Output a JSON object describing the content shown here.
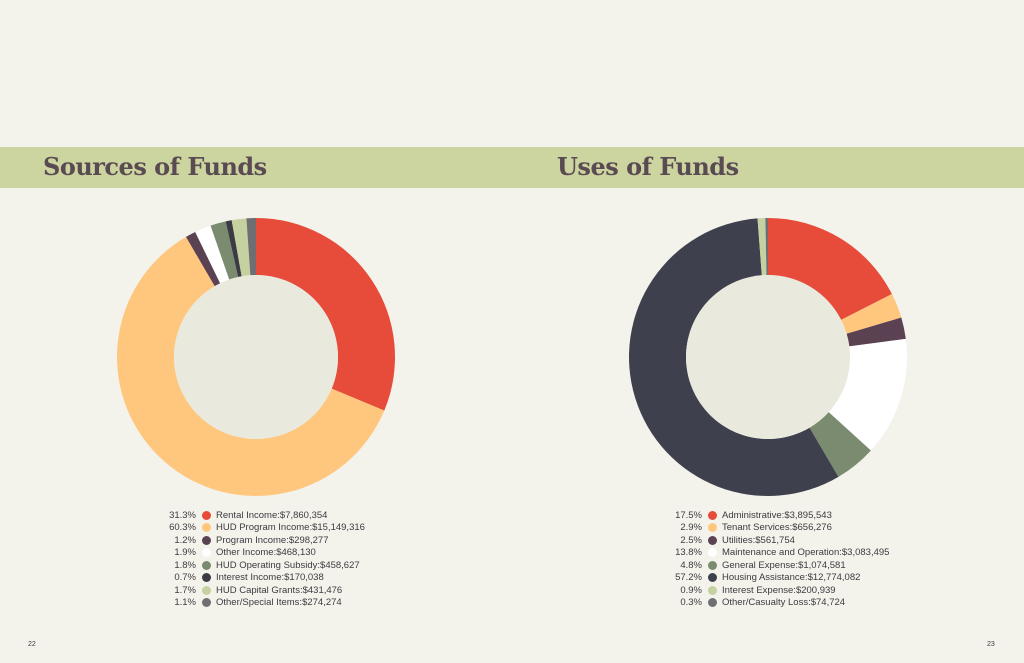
{
  "colors": {
    "background": "#f3f2eb",
    "band": "#ccd5a0",
    "title": "#5a4a52",
    "hole": "#e9e9de"
  },
  "pages": {
    "left": "22",
    "right": "23"
  },
  "chart_data": [
    {
      "type": "pie",
      "title": "Sources of Funds",
      "donut": true,
      "categories": [
        "Rental Income",
        "HUD Program Income",
        "Program Income",
        "Other Income",
        "HUD Operating Subsidy",
        "Interest Income",
        "HUD Capital Grants",
        "Other/Special Items"
      ],
      "values": [
        31.3,
        60.3,
        1.2,
        1.9,
        1.8,
        0.7,
        1.7,
        1.1
      ],
      "percent_labels": [
        "31.3%",
        "60.3%",
        "1.2%",
        "1.9%",
        "1.8%",
        "0.7%",
        "1.7%",
        "1.1%"
      ],
      "amounts": [
        "$7,860,354",
        "$15,149,316",
        "$298,277",
        "$468,130",
        "$458,627",
        "$170,038",
        "$431,476",
        "$274,274"
      ],
      "colors": [
        "#e64c39",
        "#ffc77d",
        "#5a4252",
        "#ffffff",
        "#7a8b6f",
        "#3b3b43",
        "#c5d1a0",
        "#6f6f73"
      ],
      "legend_position": "bottom"
    },
    {
      "type": "pie",
      "title": "Uses of Funds",
      "donut": true,
      "categories": [
        "Administrative",
        "Tenant Services",
        "Utilities",
        "Maintenance and Operation",
        "General Expense",
        "Housing Assistance",
        "Interest Expense",
        "Other/Casualty Loss"
      ],
      "values": [
        17.5,
        2.9,
        2.5,
        13.8,
        4.8,
        57.2,
        0.9,
        0.3
      ],
      "percent_labels": [
        "17.5%",
        "2.9%",
        "2.5%",
        "13.8%",
        "4.8%",
        "57.2%",
        "0.9%",
        "0.3%"
      ],
      "amounts": [
        "$3,895,543",
        "$656,276",
        "$561,754",
        "$3,083,495",
        "$1,074,581",
        "$12,774,082",
        "$200,939",
        "$74,724"
      ],
      "colors": [
        "#e64c39",
        "#ffc77d",
        "#5a4252",
        "#ffffff",
        "#7a8b6f",
        "#3f404d",
        "#c5d1a0",
        "#6f6f73"
      ],
      "legend_position": "bottom"
    }
  ]
}
